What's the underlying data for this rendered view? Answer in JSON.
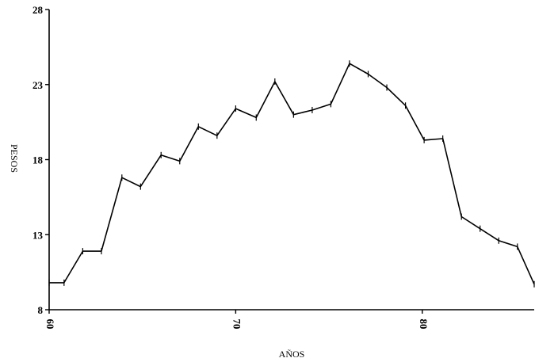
{
  "chart_data": {
    "type": "line",
    "title": "",
    "xlabel": "AÑOS",
    "ylabel": "PESOS",
    "xlim": [
      60,
      86
    ],
    "ylim": [
      8,
      28
    ],
    "xticks": [
      60,
      70,
      80
    ],
    "xtick_labels": [
      "60",
      "70",
      "80"
    ],
    "yticks": [
      8,
      13,
      18,
      23,
      28
    ],
    "ytick_labels": [
      "8",
      "13",
      "18",
      "23",
      "28"
    ],
    "grid": false,
    "legend": "none",
    "series": [
      {
        "x": [
          60,
          60.8,
          61.8,
          62.8,
          63.9,
          64.9,
          66.0,
          67.0,
          68.0,
          69.0,
          70.0,
          71.1,
          72.1,
          73.1,
          74.1,
          75.1,
          76.1,
          77.1,
          78.1,
          79.1,
          80.1,
          81.1,
          82.1,
          83.1,
          84.1,
          85.1,
          86
        ],
        "y": [
          9.8,
          9.8,
          11.9,
          11.9,
          16.8,
          16.2,
          18.3,
          17.9,
          20.2,
          19.6,
          21.4,
          20.8,
          23.2,
          21.0,
          21.3,
          21.7,
          24.4,
          23.7,
          22.8,
          21.6,
          19.3,
          19.4,
          14.2,
          13.4,
          12.6,
          12.2,
          9.7
        ]
      }
    ]
  }
}
